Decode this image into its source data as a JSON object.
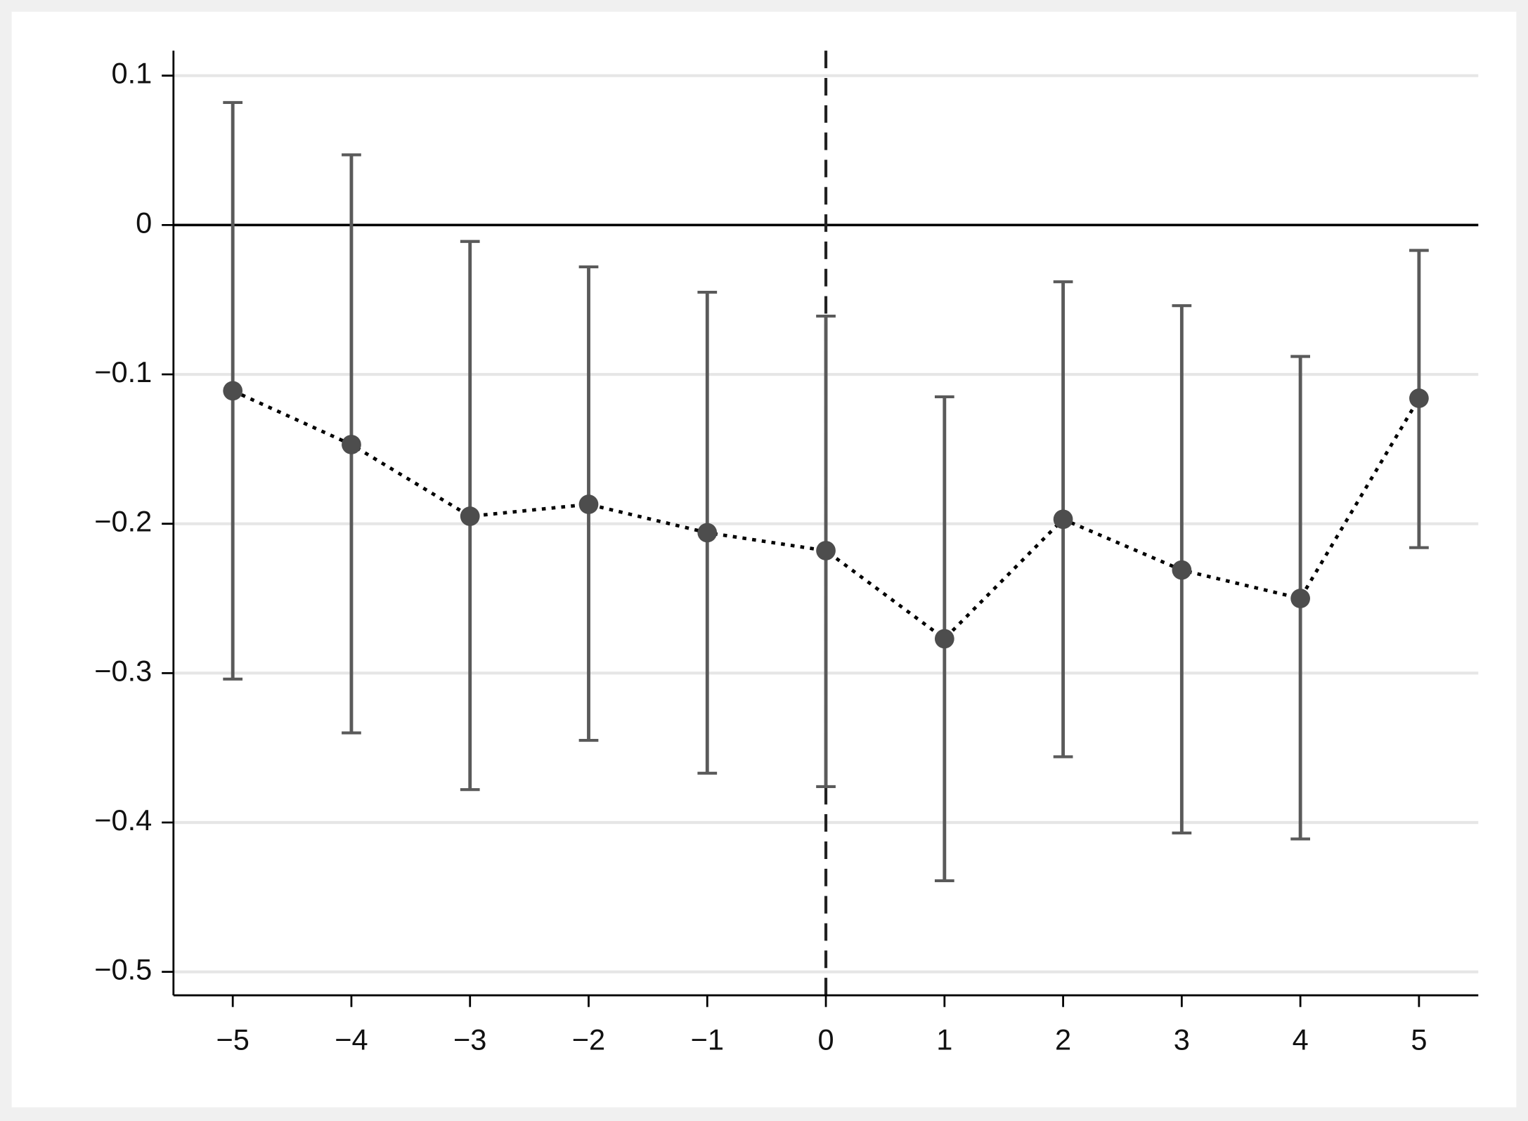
{
  "chart_data": {
    "type": "errorbar",
    "x": [
      -5,
      -4,
      -3,
      -2,
      -1,
      0,
      1,
      2,
      3,
      4,
      5
    ],
    "series": [
      {
        "color": "#4d4d4d",
        "values": [
          -0.111,
          -0.147,
          -0.195,
          -0.187,
          -0.206,
          -0.218,
          -0.277,
          -0.197,
          -0.231,
          -0.25,
          -0.116
        ],
        "lower": [
          -0.304,
          -0.34,
          -0.378,
          -0.345,
          -0.367,
          -0.376,
          -0.439,
          -0.356,
          -0.407,
          -0.411,
          -0.216
        ],
        "upper": [
          0.082,
          0.047,
          -0.011,
          -0.028,
          -0.045,
          -0.061,
          -0.115,
          -0.038,
          -0.054,
          -0.088,
          -0.017
        ]
      }
    ],
    "xlim": [
      -5.5,
      5.5
    ],
    "ylim": [
      -0.5157,
      0.1167
    ],
    "xticks": [
      {
        "value": -5,
        "label": "−5"
      },
      {
        "value": -4,
        "label": "−4"
      },
      {
        "value": -3,
        "label": "−3"
      },
      {
        "value": -2,
        "label": "−2"
      },
      {
        "value": -1,
        "label": "−1"
      },
      0,
      1,
      2,
      3,
      4,
      5
    ],
    "yticks": [
      0.1,
      0,
      {
        "value": -0.1,
        "label": "−0.1"
      },
      {
        "value": -0.2,
        "label": "−0.2"
      },
      {
        "value": -0.3,
        "label": "−0.3"
      },
      {
        "value": -0.4,
        "label": "−0.4"
      },
      {
        "value": -0.5,
        "label": "−0.5"
      }
    ],
    "hline": 0,
    "vline": 0,
    "grid": true
  }
}
